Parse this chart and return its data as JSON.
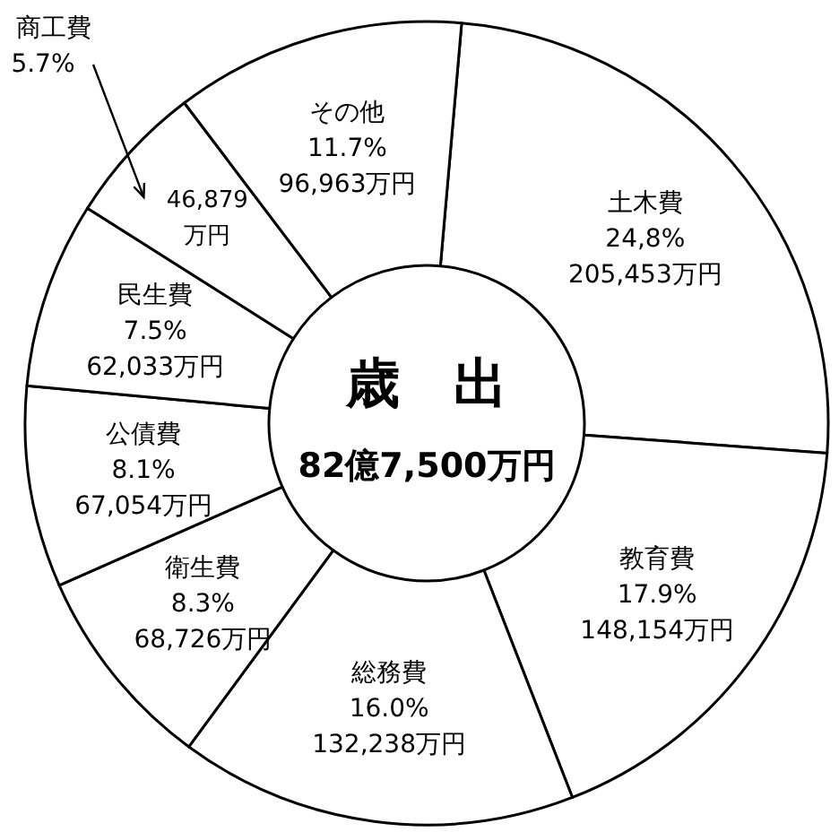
{
  "chart_data": {
    "type": "donut",
    "title": "歳　出",
    "subtitle": "82億7,500万円",
    "categories": [
      "土木費",
      "教育費",
      "総務費",
      "衛生費",
      "公債費",
      "民生費",
      "商工費",
      "その他"
    ],
    "values": [
      24.8,
      17.9,
      16.0,
      8.3,
      8.1,
      7.5,
      5.7,
      11.7
    ],
    "value_labels": [
      "24,8%",
      "17.9%",
      "16.0%",
      "8.3%",
      "8.1%",
      "7.5%",
      "5.7%",
      "11.7%"
    ],
    "colors": [
      "#ffffff",
      "#ffffff",
      "#ffffff",
      "#ffffff",
      "#ffffff",
      "#ffffff",
      "#ffffff",
      "#ffffff"
    ],
    "annotations": [
      {
        "text": "205,453万円",
        "x": "土木費"
      },
      {
        "text": "148,154万円",
        "x": "教育費"
      },
      {
        "text": "132,238万円",
        "x": "総務費"
      },
      {
        "text": "68,726万円",
        "x": "衛生費"
      },
      {
        "text": "67,054万円",
        "x": "公債費"
      },
      {
        "text": "62,033万円",
        "x": "民生費"
      },
      {
        "text": "46,879 万円",
        "x": "商工費"
      },
      {
        "text": "96,963万円",
        "x": "その他"
      }
    ]
  }
}
